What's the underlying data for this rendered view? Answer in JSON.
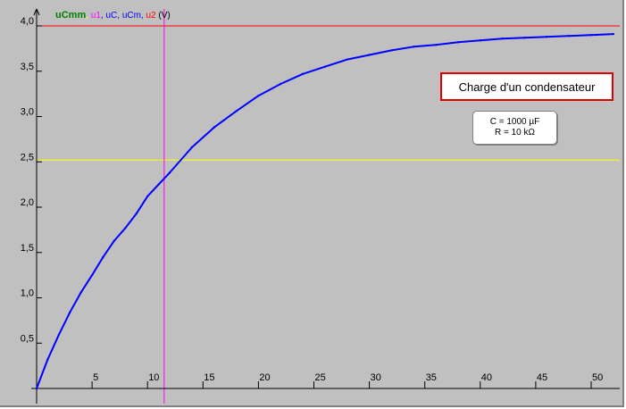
{
  "legend": {
    "main": "uCmm",
    "items": [
      {
        "text": ",",
        "color": "#ffff00"
      },
      {
        "text": " u1",
        "color": "#ff00ff"
      },
      {
        "text": ", uC, uCm,",
        "color": "#0000ff"
      },
      {
        "text": " u2",
        "color": "#ff0000"
      },
      {
        "text": " (V)",
        "color": "#000000"
      }
    ]
  },
  "title": "Charge d'un condensateur",
  "params": {
    "capacitance": "C = 1000 µF",
    "resistance": "R = 10 kΩ"
  },
  "colors": {
    "background": "#c0c0c0",
    "curve": "#0000ff",
    "asymptote": "#ff0000",
    "tau_line": "#ff00ff",
    "half_line": "#ffff00"
  },
  "chart_data": {
    "type": "line",
    "xlim": [
      0,
      52
    ],
    "ylim": [
      0,
      4
    ],
    "xticks": [
      "5",
      "10",
      "15",
      "20",
      "25",
      "30",
      "35",
      "40",
      "45",
      "50"
    ],
    "yticks": [
      "0,5",
      "1,0",
      "1,5",
      "2,0",
      "2,5",
      "3,0",
      "3,5",
      "4,0"
    ],
    "series": [
      {
        "name": "uC",
        "x": [
          0,
          1,
          2,
          3,
          4,
          5,
          6,
          7,
          8,
          9,
          10,
          11,
          12,
          14,
          16,
          18,
          20,
          22,
          24,
          26,
          28,
          30,
          32,
          34,
          36,
          38,
          40,
          42,
          44,
          46,
          48,
          50,
          52
        ],
        "y": [
          0.0,
          0.32,
          0.59,
          0.84,
          1.06,
          1.25,
          1.45,
          1.63,
          1.77,
          1.93,
          2.12,
          2.25,
          2.38,
          2.66,
          2.88,
          3.06,
          3.23,
          3.36,
          3.47,
          3.55,
          3.63,
          3.68,
          3.73,
          3.77,
          3.79,
          3.82,
          3.84,
          3.86,
          3.87,
          3.88,
          3.89,
          3.9,
          3.91
        ]
      }
    ],
    "guides": {
      "asymptote_y": 4.0,
      "half_y": 2.52,
      "tau_x": 11.5
    }
  }
}
